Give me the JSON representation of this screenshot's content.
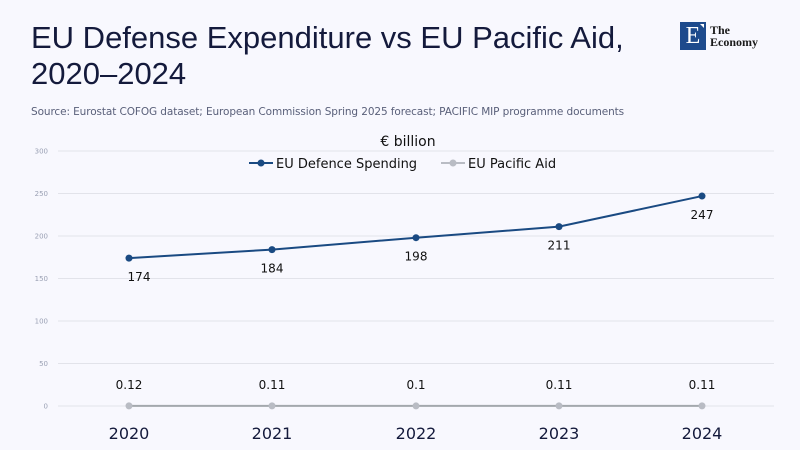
{
  "header": {
    "title_line1": "EU Defense Expenditure vs EU Pacific Aid,",
    "title_line2": "2020–2024",
    "source": "Source: Eurostat COFOG dataset; European Commission Spring 2025 forecast; PACIFIC MIP programme documents"
  },
  "logo": {
    "letter": "E",
    "line1": "The",
    "line2": "Economy",
    "color": "#1d4a8c"
  },
  "chart_data": {
    "type": "line",
    "title": "EU Defense Expenditure vs EU Pacific Aid, 2020–2024",
    "ylabel": "€ billion",
    "xlabel": "",
    "categories": [
      "2020",
      "2021",
      "2022",
      "2023",
      "2024"
    ],
    "ylim": [
      0,
      300
    ],
    "yticks": [
      0,
      50,
      100,
      150,
      200,
      250,
      300
    ],
    "grid": true,
    "legend_position": "top-center",
    "series": [
      {
        "name": "EU Defence Spending",
        "values": [
          174,
          184,
          198,
          211,
          247
        ],
        "labels": [
          "174",
          "184",
          "198",
          "211",
          "247"
        ],
        "color": "#1a4a82"
      },
      {
        "name": "EU Pacific Aid",
        "values": [
          0.12,
          0.11,
          0.1,
          0.11,
          0.11
        ],
        "labels": [
          "0.12",
          "0.11",
          "0.1",
          "0.11",
          "0.11"
        ],
        "color": "#b9bcc4"
      }
    ]
  }
}
